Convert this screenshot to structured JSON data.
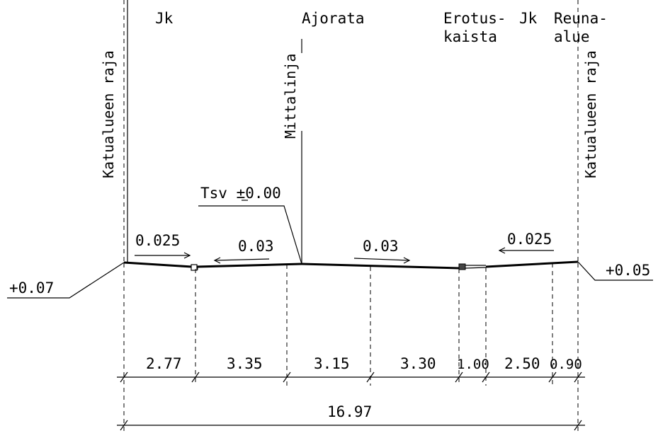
{
  "labels": {
    "jk_left": "Jk",
    "ajorata": "Ajorata",
    "erotus_1": "Erotus-",
    "erotus_2": "kaista",
    "jk_right": "Jk",
    "reuna_1": "Reuna-",
    "reuna_2": "alue",
    "katualue_left": "Katualueen raja",
    "katualue_right": "Katualueen raja",
    "mittalinja": "Mittalinja",
    "tsv": "Tsv ±0.00"
  },
  "elevations": {
    "left": "+0.07",
    "right": "+0.05"
  },
  "slopes": {
    "jk_left": "0.025",
    "lane_left": "0.03",
    "lane_right": "0.03",
    "jk_right": "0.025"
  },
  "dimensions": {
    "segments": [
      "2.77",
      "3.35",
      "3.15",
      "3.30",
      "1.00",
      "2.50",
      "0.90"
    ],
    "total": "16.97"
  }
}
